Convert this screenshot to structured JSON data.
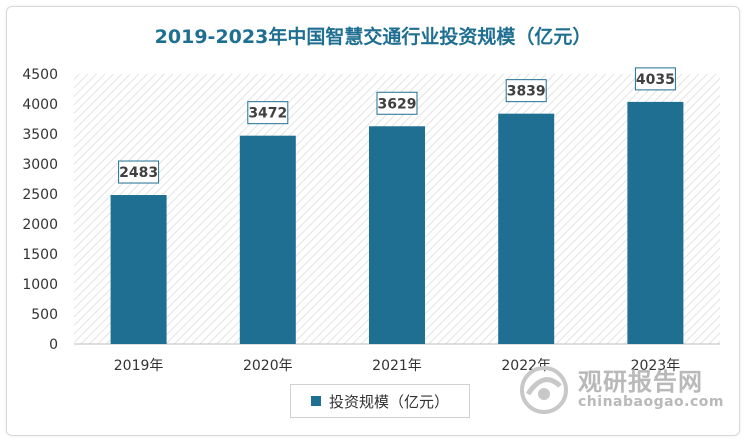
{
  "chart_data": {
    "type": "bar",
    "title": "2019-2023年中国智慧交通行业投资规模（亿元）",
    "categories": [
      "2019年",
      "2020年",
      "2021年",
      "2022年",
      "2023年"
    ],
    "series": [
      {
        "name": "投资规模（亿元）",
        "values": [
          2483,
          3472,
          3629,
          3839,
          4035
        ]
      }
    ],
    "ylim": [
      0,
      4500
    ],
    "yticks": [
      0,
      500,
      1000,
      1500,
      2000,
      2500,
      3000,
      3500,
      4000,
      4500
    ],
    "xlabel": "",
    "ylabel": "",
    "grid": false,
    "legend_position": "bottom-center",
    "bar_color": "#1f6f92"
  },
  "watermark": {
    "name": "观研报告网",
    "url": "chinabaogao.com"
  }
}
